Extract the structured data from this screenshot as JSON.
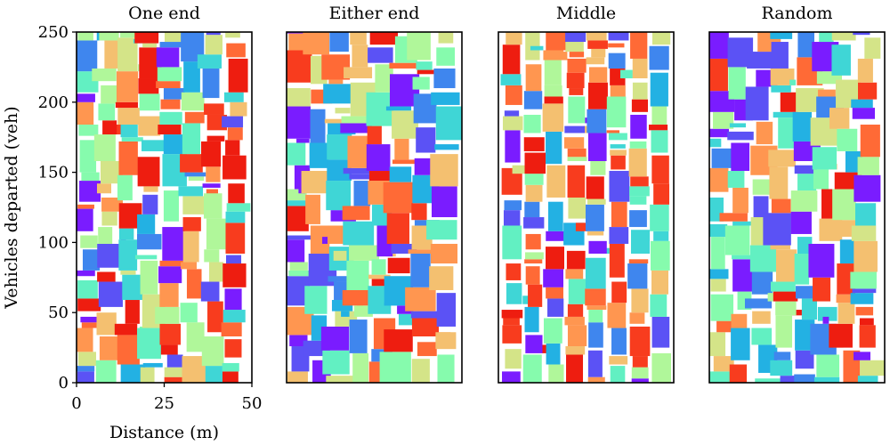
{
  "chart_data": {
    "type": "rectangle-packing",
    "ylabel": "Vehicles departed (veh)",
    "xlabel": "Distance (m)",
    "xlim": [
      0,
      50
    ],
    "ylim": [
      0,
      250
    ],
    "xticks": [
      "0",
      "25",
      "50"
    ],
    "yticks": [
      "0",
      "50",
      "100",
      "150",
      "200",
      "250"
    ],
    "palette": [
      "#7a1cff",
      "#5b52f5",
      "#3f86ee",
      "#23b1e3",
      "#3fd6d6",
      "#62f0c2",
      "#86fbad",
      "#b0f79a",
      "#d4e488",
      "#f4c070",
      "#ff9650",
      "#ff6a36",
      "#f83c1e",
      "#ee1d10"
    ],
    "panels": [
      {
        "title": "One end",
        "strategy": "one_end",
        "lane_centers": [
          3,
          9,
          15,
          21,
          27,
          33,
          39,
          45
        ],
        "length_m": [
          4,
          7
        ],
        "seed": 11
      },
      {
        "title": "Either end",
        "strategy": "either_end",
        "lane_centers": [
          3,
          9,
          15,
          21,
          27,
          33,
          39,
          45
        ],
        "length_m": [
          4,
          9
        ],
        "seed": 23
      },
      {
        "title": "Middle",
        "strategy": "middle",
        "lane_centers": [
          4,
          10,
          16,
          22,
          28,
          34,
          40,
          46
        ],
        "length_m": [
          4,
          6
        ],
        "seed": 37
      },
      {
        "title": "Random",
        "strategy": "random",
        "lane_centers": [
          3,
          9,
          15,
          21,
          27,
          33,
          39,
          45
        ],
        "length_m": [
          4,
          8
        ],
        "seed": 51
      }
    ]
  }
}
